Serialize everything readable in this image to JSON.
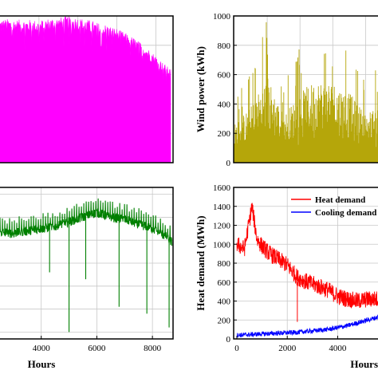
{
  "chart_data": [
    {
      "id": "p1",
      "type": "area",
      "xlabel": "",
      "ylabel": "",
      "xlim": [
        0,
        8760
      ],
      "ylim": [
        0,
        1000
      ],
      "grid": true,
      "colors": {
        "series": "#ff00ff"
      },
      "x_ticks": [],
      "y_ticks": [],
      "series": [
        {
          "x": [
            0,
            500,
            1000,
            1500,
            2000,
            2500,
            3000,
            3500,
            4000,
            4500,
            5000,
            5500,
            6000,
            6500,
            7000,
            7500,
            8000,
            8500,
            8760
          ],
          "values": [
            980,
            980,
            975,
            975,
            970,
            985,
            990,
            1000,
            990,
            975,
            955,
            940,
            915,
            880,
            840,
            790,
            730,
            665,
            640
          ]
        }
      ]
    },
    {
      "id": "p2",
      "type": "bar",
      "xlabel": "",
      "ylabel": "Wind power (kWh)",
      "xlim": [
        0,
        8760
      ],
      "ylim": [
        0,
        1000
      ],
      "grid": true,
      "colors": {
        "series": "#b5a60a"
      },
      "x_ticks": [],
      "y_ticks": [
        "0",
        "200",
        "400",
        "600",
        "800",
        "1000"
      ],
      "series": [
        {
          "x": [
            0,
            1000,
            2000,
            3000,
            4000,
            5000,
            6000,
            7000,
            8000,
            8760
          ],
          "values": [
            440,
            640,
            1000,
            540,
            800,
            950,
            930,
            800,
            560,
            650
          ]
        }
      ]
    },
    {
      "id": "p3",
      "type": "line",
      "xlabel": "Hours",
      "ylabel": "",
      "xlim": [
        2000,
        9000
      ],
      "ylim": [
        -230,
        430
      ],
      "grid": true,
      "colors": {
        "series": "#008000"
      },
      "x_ticks": [
        "4000",
        "6000",
        "8000"
      ],
      "y_ticks": [],
      "series": [
        {
          "x": [
            2000,
            2500,
            3000,
            3500,
            4000,
            4500,
            5000,
            5500,
            6000,
            6500,
            7000,
            7500,
            8000,
            8500,
            8700
          ],
          "values": [
            240,
            235,
            230,
            240,
            250,
            260,
            280,
            300,
            320,
            300,
            290,
            270,
            250,
            215,
            190
          ]
        }
      ]
    },
    {
      "id": "p4",
      "type": "line",
      "xlabel": "Hours",
      "ylabel": "Heat demand (MWh)",
      "xlim": [
        0,
        5600
      ],
      "ylim": [
        0,
        1600
      ],
      "grid": true,
      "legend": "top-right",
      "x_ticks": [
        "0",
        "2000",
        "4000"
      ],
      "y_ticks": [
        "0",
        "200",
        "400",
        "600",
        "800",
        "1000",
        "1200",
        "1400",
        "1600"
      ],
      "series": [
        {
          "name": "Heat demand",
          "color": "#ff0000",
          "x": [
            0,
            300,
            600,
            800,
            1000,
            1300,
            1600,
            2000,
            2400,
            2800,
            3200,
            3600,
            4000,
            4400,
            4800,
            5200,
            5600
          ],
          "values": [
            1000,
            950,
            1400,
            1050,
            980,
            900,
            850,
            780,
            650,
            600,
            560,
            520,
            450,
            420,
            400,
            420,
            420
          ]
        },
        {
          "name": "Cooling demand",
          "color": "#0000ff",
          "x": [
            0,
            400,
            800,
            1200,
            1600,
            2000,
            2400,
            2800,
            3200,
            3600,
            4000,
            4400,
            4800,
            5200,
            5600
          ],
          "values": [
            40,
            45,
            50,
            55,
            60,
            65,
            70,
            80,
            90,
            100,
            120,
            140,
            170,
            200,
            230
          ]
        }
      ]
    }
  ]
}
